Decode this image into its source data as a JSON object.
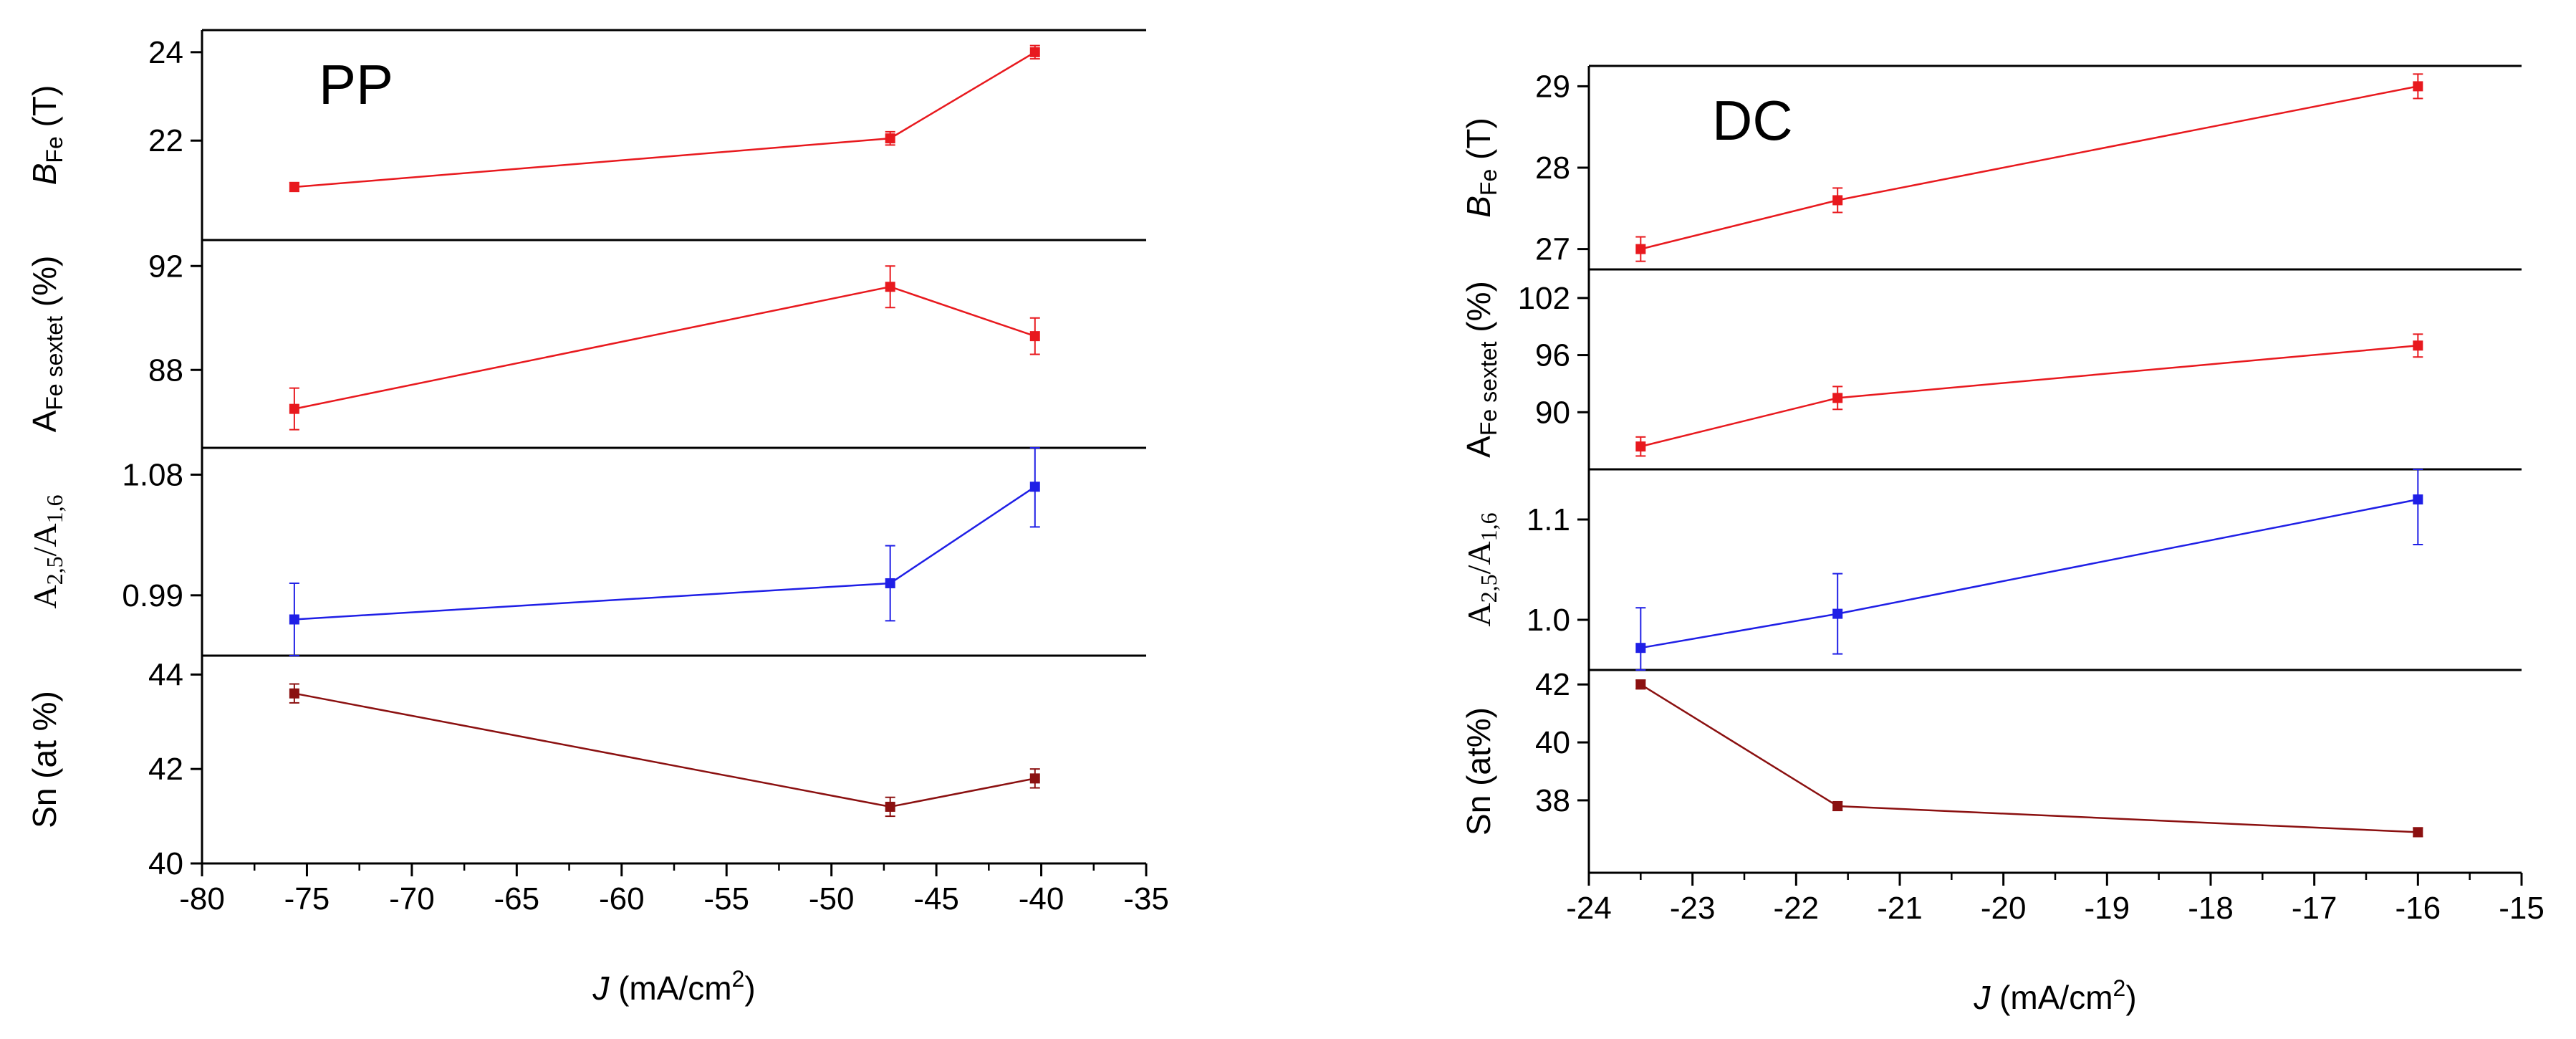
{
  "figure_panels": [
    {
      "label": "PP"
    },
    {
      "label": "DC"
    }
  ],
  "colors": {
    "red": "#e8191e",
    "blue": "#1f1fe6",
    "darkred": "#8b1010",
    "axis": "#000000"
  },
  "chart_data": [
    {
      "type": "line",
      "panel": "PP",
      "subplot": "B_Fe",
      "ylabel": {
        "main": "B",
        "sub": "Fe",
        "unit": " (T)"
      },
      "x": [
        -75.6,
        -47.2,
        -40.3
      ],
      "values": [
        20.95,
        22.05,
        24.0
      ],
      "errors": [
        0.1,
        0.15,
        0.15
      ],
      "ylim": [
        19.75,
        24.5
      ],
      "yticks": [
        "22",
        "24"
      ],
      "color": "red"
    },
    {
      "type": "line",
      "panel": "PP",
      "subplot": "A_Fe_sextet",
      "ylabel": {
        "main": "A",
        "sub": "Fe sextet",
        "unit": " (%)"
      },
      "x": [
        -75.6,
        -47.2,
        -40.3
      ],
      "values": [
        86.5,
        91.2,
        89.3
      ],
      "errors": [
        0.8,
        0.8,
        0.7
      ],
      "ylim": [
        85.0,
        93.0
      ],
      "yticks": [
        "88",
        "92"
      ],
      "color": "red"
    },
    {
      "type": "line",
      "panel": "PP",
      "subplot": "A25_A16",
      "ylabel": {
        "main": "A",
        "sub1": "2,5",
        "mid": "/A",
        "sub2": "1,6"
      },
      "x": [
        -75.6,
        -47.2,
        -40.3
      ],
      "values": [
        0.972,
        0.999,
        1.071
      ],
      "errors": [
        0.027,
        0.028,
        0.03
      ],
      "ylim": [
        0.945,
        1.1
      ],
      "yticks": [
        "0.99",
        "1.08"
      ],
      "color": "blue"
    },
    {
      "type": "line",
      "panel": "PP",
      "subplot": "Sn",
      "ylabel": {
        "main": "Sn (at %)"
      },
      "x": [
        -75.6,
        -47.2,
        -40.3
      ],
      "values": [
        43.6,
        41.2,
        41.8
      ],
      "errors": [
        0.2,
        0.2,
        0.2
      ],
      "ylim": [
        40.0,
        44.4
      ],
      "yticks": [
        "40",
        "42",
        "44"
      ],
      "color": "darkred"
    },
    {
      "type": "line",
      "panel": "DC",
      "subplot": "B_Fe",
      "ylabel": {
        "main": "B",
        "sub": "Fe",
        "unit": " (T)"
      },
      "x": [
        -23.5,
        -21.6,
        -16.0
      ],
      "values": [
        27.0,
        27.6,
        29.0
      ],
      "errors": [
        0.15,
        0.15,
        0.15
      ],
      "ylim": [
        26.75,
        29.25
      ],
      "yticks": [
        "27",
        "28",
        "29"
      ],
      "color": "red"
    },
    {
      "type": "line",
      "panel": "DC",
      "subplot": "A_Fe_sextet",
      "ylabel": {
        "main": "A",
        "sub": "Fe sextet",
        "unit": " (%)"
      },
      "x": [
        -23.5,
        -21.6,
        -16.0
      ],
      "values": [
        86.4,
        91.5,
        97.0
      ],
      "errors": [
        1.0,
        1.2,
        1.2
      ],
      "ylim": [
        84.0,
        105.0
      ],
      "yticks": [
        "90",
        "96",
        "102"
      ],
      "color": "red"
    },
    {
      "type": "line",
      "panel": "DC",
      "subplot": "A25_A16",
      "ylabel": {
        "main": "A",
        "sub1": "2,5",
        "mid": "/A",
        "sub2": "1,6"
      },
      "x": [
        -23.5,
        -21.6,
        -16.0
      ],
      "values": [
        0.972,
        1.006,
        1.12
      ],
      "errors": [
        0.04,
        0.04,
        0.045
      ],
      "ylim": [
        0.95,
        1.15
      ],
      "yticks": [
        "1.0",
        "1.1"
      ],
      "color": "blue"
    },
    {
      "type": "line",
      "panel": "DC",
      "subplot": "Sn",
      "ylabel": {
        "main": "Sn (at%)"
      },
      "x": [
        -23.5,
        -21.6,
        -16.0
      ],
      "values": [
        42.0,
        37.8,
        36.9
      ],
      "errors": [
        0.15,
        0.15,
        0.15
      ],
      "ylim": [
        35.5,
        42.5
      ],
      "yticks": [
        "38",
        "40",
        "42"
      ],
      "color": "darkred"
    }
  ],
  "x_axes": [
    {
      "panel": "PP",
      "xlim": [
        -80,
        -35
      ],
      "xticks": [
        "-80",
        "-75",
        "-70",
        "-65",
        "-60",
        "-55",
        "-50",
        "-45",
        "-40",
        "-35"
      ],
      "xlabel": {
        "italic": "J",
        "text": " (mA/cm",
        "sup": "2",
        "close": ")"
      }
    },
    {
      "panel": "DC",
      "xlim": [
        -24,
        -15
      ],
      "xticks": [
        "-24",
        "-23",
        "-22",
        "-21",
        "-20",
        "-19",
        "-18",
        "-17",
        "-16",
        "-15"
      ],
      "xlabel": {
        "italic": "J",
        "text": " (mA/cm",
        "sup": "2",
        "close": ")"
      }
    }
  ]
}
